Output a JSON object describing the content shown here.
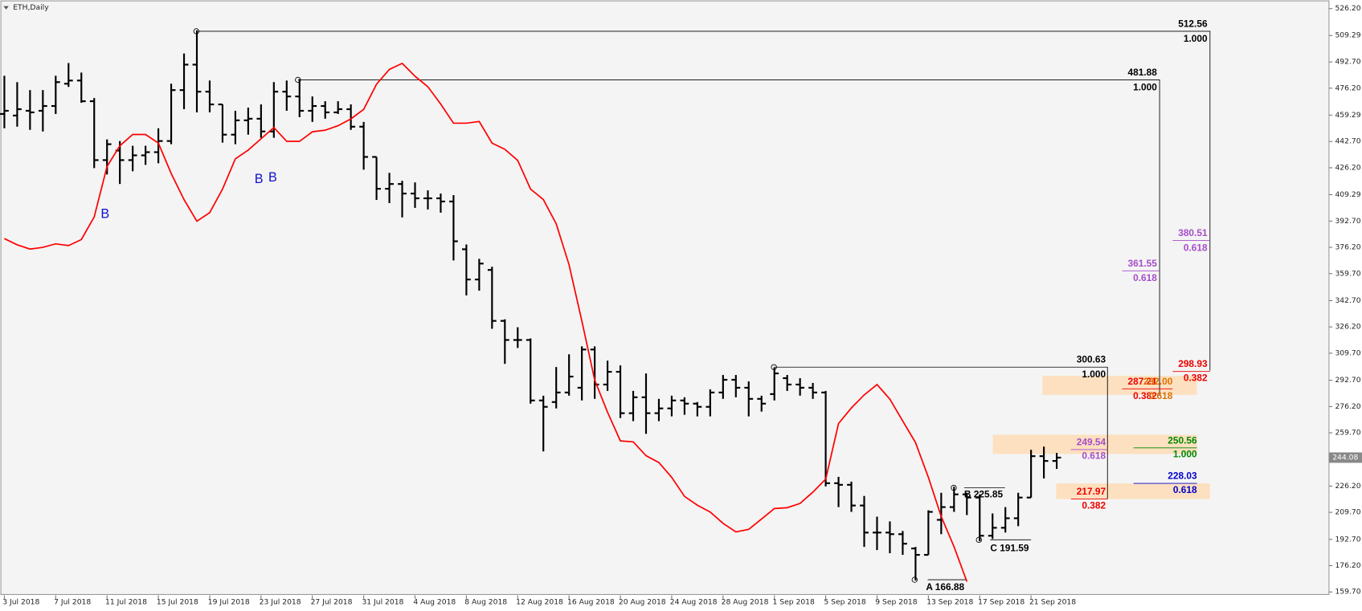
{
  "chart_data": {
    "type": "ohlc",
    "title": "ETH,Daily",
    "categories": [
      "3 Jul 2018",
      null,
      null,
      null,
      "7 Jul 2018",
      null,
      null,
      null,
      "11 Jul 2018",
      null,
      null,
      null,
      "15 Jul 2018",
      null,
      null,
      null,
      "19 Jul 2018",
      null,
      null,
      null,
      "23 Jul 2018",
      null,
      null,
      null,
      "27 Jul 2018",
      null,
      null,
      null,
      "31 Jul 2018",
      null,
      null,
      null,
      "4 Aug 2018",
      null,
      null,
      null,
      "8 Aug 2018",
      null,
      null,
      null,
      "12 Aug 2018",
      null,
      null,
      null,
      "16 Aug 2018",
      null,
      null,
      null,
      "20 Aug 2018",
      null,
      null,
      null,
      "24 Aug 2018",
      null,
      null,
      null,
      "28 Aug 2018",
      null,
      null,
      null,
      "1 Sep 2018",
      null,
      null,
      null,
      "5 Sep 2018",
      null,
      null,
      null,
      "9 Sep 2018",
      null,
      null,
      null,
      "13 Sep 2018",
      null,
      null,
      null,
      "17 Sep 2018",
      null,
      null,
      null,
      "21 Sep 2018",
      null,
      null
    ],
    "ohlc": {
      "color": "#000000",
      "open": [
        460,
        459,
        462,
        462,
        465,
        479,
        481,
        468,
        431,
        437,
        431,
        434,
        436,
        443,
        475,
        491,
        474,
        466,
        447,
        456,
        457,
        449,
        474,
        471,
        462,
        465,
        461,
        463,
        452,
        433,
        413,
        416,
        410,
        407,
        407,
        405,
        375,
        356,
        362,
        330,
        318,
        318,
        280,
        279,
        285,
        288,
        312,
        290,
        298,
        272,
        282,
        272,
        275,
        280,
        278,
        276,
        285,
        293,
        288,
        281,
        284,
        294,
        290,
        288,
        285,
        228,
        227,
        214,
        197,
        197,
        196,
        187,
        183,
        205,
        213,
        221,
        219,
        195,
        200,
        206,
        219,
        245,
        242
      ],
      "high": [
        484,
        480,
        475,
        475,
        484,
        492,
        486,
        470,
        444,
        443,
        440,
        440,
        451,
        479,
        498,
        512.56,
        481,
        466,
        462,
        464,
        466,
        480,
        481,
        481.88,
        471,
        468,
        468,
        466,
        455,
        433,
        423,
        418,
        417,
        412,
        410,
        409,
        378,
        369,
        364,
        331,
        326,
        319,
        283,
        301,
        309,
        314,
        314,
        305,
        302,
        286,
        297,
        281,
        283,
        282,
        279,
        287,
        296,
        296,
        292,
        283,
        300.63,
        296,
        294,
        291,
        286,
        232,
        229,
        220,
        207,
        204,
        198,
        188,
        211,
        222,
        225.85,
        222,
        221,
        209,
        213,
        222,
        249,
        251,
        247
      ],
      "low": [
        451,
        452,
        450,
        449,
        460,
        477,
        467,
        426,
        422,
        416,
        424,
        428,
        429,
        441,
        463,
        461,
        461,
        442,
        441,
        447,
        445,
        445,
        462,
        458,
        455,
        457,
        460,
        450,
        425,
        406,
        404,
        395,
        401,
        400,
        398,
        368,
        346,
        349,
        325,
        303,
        313,
        278,
        248,
        275,
        283,
        280,
        281,
        286,
        269,
        267,
        259,
        267,
        270,
        271,
        270,
        270,
        281,
        282,
        270,
        273,
        280,
        286,
        283,
        281,
        226,
        213,
        210,
        188,
        186,
        184,
        183,
        166.88,
        183,
        196,
        210,
        208,
        191.59,
        193,
        197,
        201,
        219,
        231,
        237
      ],
      "close": [
        462,
        463,
        461,
        465,
        480,
        481,
        468,
        431,
        441,
        431,
        434,
        436,
        443,
        475,
        491,
        474,
        466,
        447,
        456,
        457,
        449,
        474,
        471,
        462,
        465,
        461,
        463,
        452,
        433,
        413,
        416,
        410,
        407,
        407,
        405,
        380,
        356,
        366,
        330,
        318,
        318,
        280,
        276,
        285,
        295,
        312,
        290,
        298,
        272,
        282,
        272,
        275,
        280,
        278,
        276,
        285,
        293,
        288,
        281,
        278,
        297,
        290,
        288,
        285,
        228,
        227,
        214,
        197,
        197,
        196,
        190,
        183,
        210,
        213,
        221,
        219,
        195,
        200,
        206,
        219,
        245,
        242,
        244.08
      ]
    },
    "series": [
      {
        "color": "#ff0000",
        "values": [
          381.7,
          377.8,
          375.1,
          376.2,
          378.4,
          377.3,
          381.1,
          395.3,
          427.0,
          440.0,
          447.1,
          447.1,
          441.7,
          422.6,
          406.2,
          392.6,
          398.0,
          412.8,
          431.8,
          437.3,
          444.4,
          451.5,
          442.8,
          442.8,
          448.8,
          449.8,
          452.6,
          456.9,
          462.9,
          478.7,
          488.0,
          491.8,
          483.7,
          477.1,
          466.2,
          454.2,
          454.2,
          455.3,
          441.7,
          437.8,
          430.8,
          412.8,
          406.2,
          391.0,
          365.3,
          329.9,
          292.8,
          272.6,
          254.6,
          254.0,
          245.3,
          241.0,
          231.7,
          219.7,
          214.2,
          209.9,
          202.8,
          197.4,
          199.0,
          205.5,
          212.1,
          212.6,
          215.3,
          222.4,
          230.6,
          265.5,
          275.3,
          283.5,
          290.0,
          280.8,
          267.1,
          253.5,
          231.7,
          207.1,
          188.1,
          166.2,
          null,
          null,
          null,
          null,
          null,
          null,
          null
        ]
      }
    ],
    "ylim": [
      149.9,
      531.6
    ],
    "yticks": [
      {
        "value": 526.2,
        "label": "526.20"
      },
      509.29,
      {
        "value": 492.7,
        "label": "492.70"
      },
      {
        "value": 476.2,
        "label": "476.20"
      },
      459.29,
      {
        "value": 442.7,
        "label": "442.70"
      },
      {
        "value": 426.2,
        "label": "426.20"
      },
      409.29,
      {
        "value": 392.7,
        "label": "392.70"
      },
      {
        "value": 376.2,
        "label": "376.20"
      },
      {
        "value": 359.7,
        "label": "359.70"
      },
      {
        "value": 342.7,
        "label": "342.70"
      },
      {
        "value": 326.2,
        "label": "326.20"
      },
      {
        "value": 309.7,
        "label": "309.70"
      },
      {
        "value": 292.7,
        "label": "292.70"
      },
      {
        "value": 276.2,
        "label": "276.20"
      },
      {
        "value": 259.7,
        "label": "259.70"
      },
      {
        "value": 226.2,
        "label": "226.20"
      },
      {
        "value": 209.7,
        "label": "209.70"
      },
      {
        "value": 192.7,
        "label": "192.70"
      },
      {
        "value": 176.2,
        "label": "176.20"
      },
      {
        "value": 159.7,
        "label": "159.70"
      }
    ],
    "current_price": 244.08,
    "annotations": [
      "B",
      "B",
      "B",
      "512.56",
      "1.000",
      "481.88",
      "1.000",
      "380.51",
      "0.618",
      "361.55",
      "0.618",
      "298.93",
      "0.382",
      "300.63",
      "1.000",
      "287.21",
      "292.00",
      "0.382",
      "0.618",
      "249.54",
      "0.618",
      "250.56",
      "1.000",
      "228.03",
      "0.618",
      "217.97",
      "0.382",
      "B 225.85",
      "C 191.59",
      "A 166.88"
    ]
  }
}
